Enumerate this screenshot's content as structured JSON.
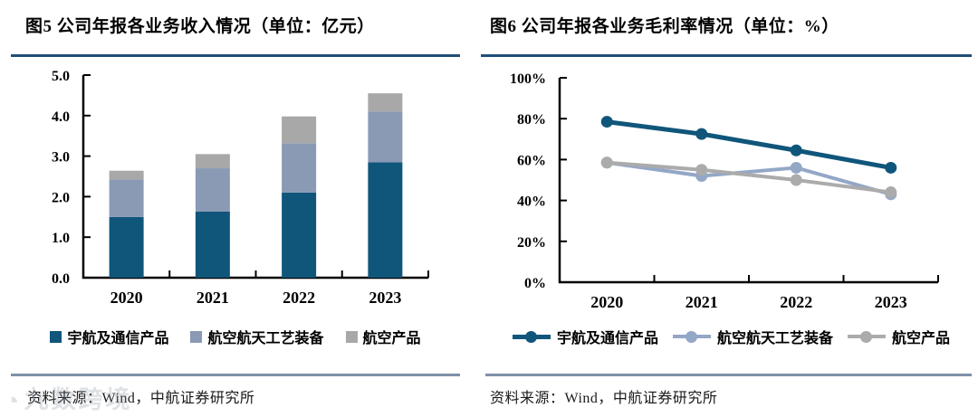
{
  "panels": [
    {
      "title": "图5 公司年报各业务收入情况（单位：亿元）",
      "source": "资料来源：Wind，中航证券研究所"
    },
    {
      "title": "图6 公司年报各业务毛利率情况（单位：%）",
      "source": "资料来源：Wind，中航证券研究所"
    }
  ],
  "watermark": {
    "text": "九数跨境"
  },
  "colors": {
    "title_rule": "#1F4E79",
    "divider": "#7E91A8",
    "axis": "#000000",
    "dark_blue": "#10567B",
    "steel_blue": "#8A9AB4",
    "gray": "#A8A8A8",
    "line_steel_blue": "#93A7C7",
    "line_gray": "#ABABAB"
  },
  "chart_data": [
    {
      "type": "bar",
      "stacked": true,
      "title": "图5 公司年报各业务收入情况（单位：亿元）",
      "categories": [
        "2020",
        "2021",
        "2022",
        "2023"
      ],
      "series": [
        {
          "name": "宇航及通信产品",
          "color": "#10567B",
          "values": [
            1.5,
            1.63,
            2.1,
            2.85
          ]
        },
        {
          "name": "航空航天工艺装备",
          "color": "#8A9AB4",
          "values": [
            0.92,
            1.07,
            1.22,
            1.25
          ]
        },
        {
          "name": "航空产品",
          "color": "#A8A8A8",
          "values": [
            0.22,
            0.35,
            0.66,
            0.45
          ]
        }
      ],
      "ylim": [
        0,
        5
      ],
      "ytick_labels": [
        "0.0",
        "1.0",
        "2.0",
        "3.0",
        "4.0",
        "5.0"
      ],
      "xlabel": "",
      "ylabel": "",
      "grid": false,
      "legend_position": "bottom"
    },
    {
      "type": "line",
      "title": "图6 公司年报各业务毛利率情况（单位：%）",
      "categories": [
        "2020",
        "2021",
        "2022",
        "2023"
      ],
      "series": [
        {
          "name": "宇航及通信产品",
          "color": "#10567B",
          "values": [
            78.5,
            72.5,
            64.5,
            56.0
          ]
        },
        {
          "name": "航空航天工艺装备",
          "color": "#93A7C7",
          "values": [
            58.5,
            52.0,
            56.0,
            43.0
          ]
        },
        {
          "name": "航空产品",
          "color": "#ABABAB",
          "values": [
            58.5,
            55.0,
            50.0,
            44.0
          ]
        }
      ],
      "ylim": [
        0,
        100
      ],
      "ytick_labels": [
        "0%",
        "20%",
        "40%",
        "60%",
        "80%",
        "100%"
      ],
      "xlabel": "",
      "ylabel": "",
      "grid": false,
      "legend_position": "bottom"
    }
  ]
}
